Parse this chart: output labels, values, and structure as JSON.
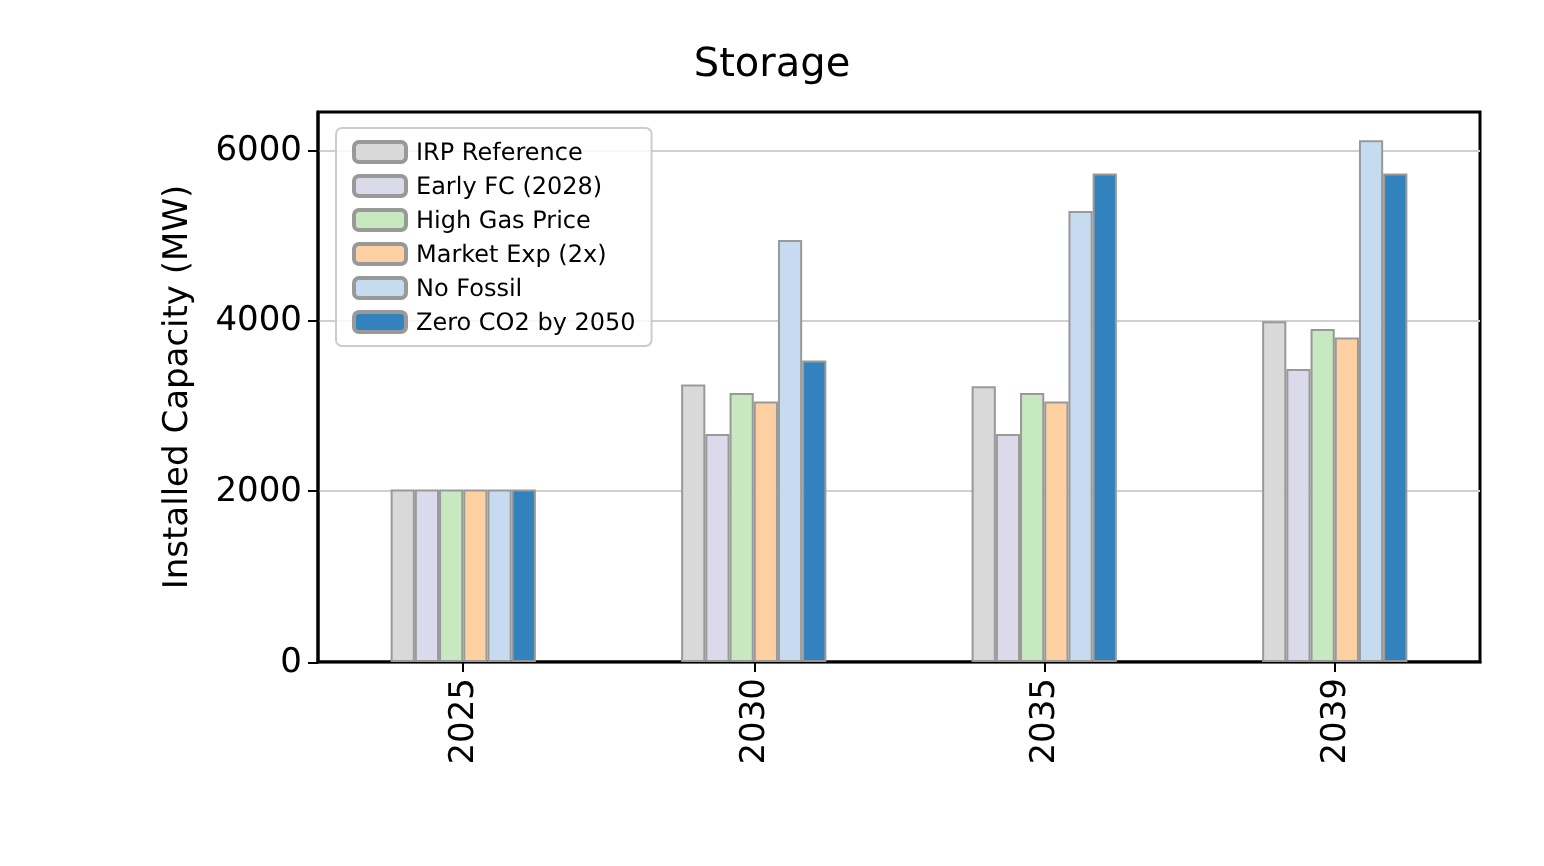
{
  "chart_data": {
    "type": "bar",
    "title": "Storage",
    "ylabel": "Installed Capacity (MW)",
    "categories": [
      "2025",
      "2030",
      "2035",
      "2039"
    ],
    "series": [
      {
        "name": "IRP Reference",
        "color": "#d9d9d9",
        "values": [
          2020,
          3250,
          3230,
          3990
        ]
      },
      {
        "name": "Early FC (2028)",
        "color": "#dadaeb",
        "values": [
          2020,
          2670,
          2670,
          3430
        ]
      },
      {
        "name": "High Gas Price",
        "color": "#c7e9c0",
        "values": [
          2020,
          3150,
          3150,
          3900
        ]
      },
      {
        "name": "Market Exp (2x)",
        "color": "#fdd0a2",
        "values": [
          2020,
          3050,
          3050,
          3800
        ]
      },
      {
        "name": "No Fossil",
        "color": "#c6dbef",
        "values": [
          2020,
          4940,
          5280,
          6110
        ]
      },
      {
        "name": "Zero CO2 by 2050",
        "color": "#3182bd",
        "values": [
          2020,
          3530,
          5720,
          5720
        ]
      }
    ],
    "ylim": [
      0,
      6440
    ],
    "yticks": [
      0,
      2000,
      4000,
      6000
    ],
    "grid": "y",
    "legend": "top left"
  }
}
